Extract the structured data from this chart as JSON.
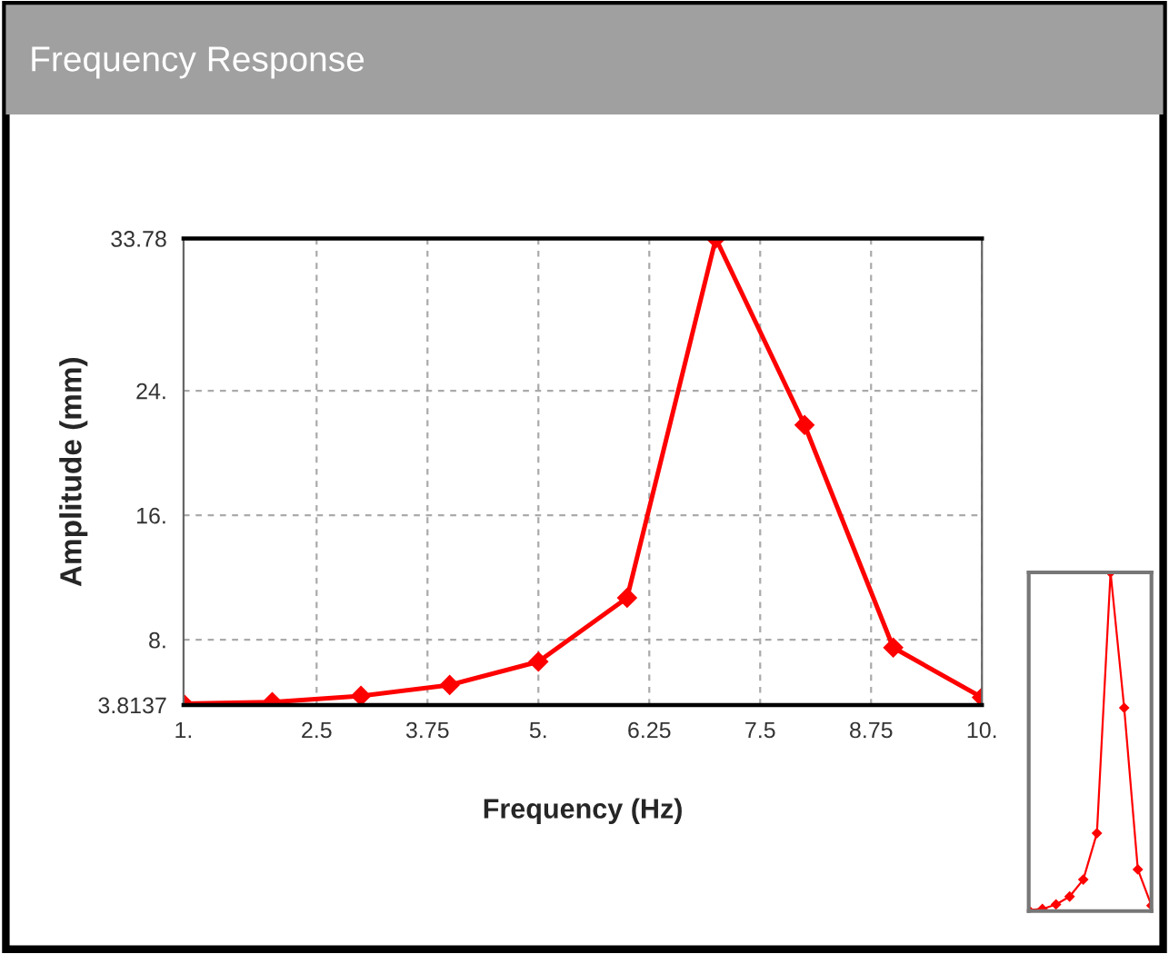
{
  "chart_data": {
    "type": "line",
    "title": "Frequency Response",
    "xlabel": "Frequency (Hz)",
    "ylabel": "Amplitude (mm)",
    "x": [
      1,
      2,
      3,
      4,
      5,
      6,
      7,
      8,
      9,
      10
    ],
    "series": [
      {
        "color": "#ff0000",
        "values": [
          3.9,
          4.0,
          4.4,
          5.1,
          6.6,
          10.7,
          33.78,
          21.8,
          7.5,
          4.3
        ]
      }
    ],
    "xlim": [
      1,
      10
    ],
    "xticks": [
      {
        "value": 1,
        "label": "1."
      },
      2.5,
      3.75,
      {
        "value": 5,
        "label": "5."
      },
      6.25,
      7.5,
      8.75,
      {
        "value": 10,
        "label": "10."
      }
    ],
    "ylim": [
      3.8137,
      33.78
    ],
    "yticks": [
      3.8137,
      {
        "value": 8,
        "label": "8."
      },
      {
        "value": 16,
        "label": "16."
      },
      {
        "value": 24,
        "label": "24."
      },
      33.78
    ],
    "grid": true,
    "marker": "diamond",
    "line_style": "solid"
  }
}
